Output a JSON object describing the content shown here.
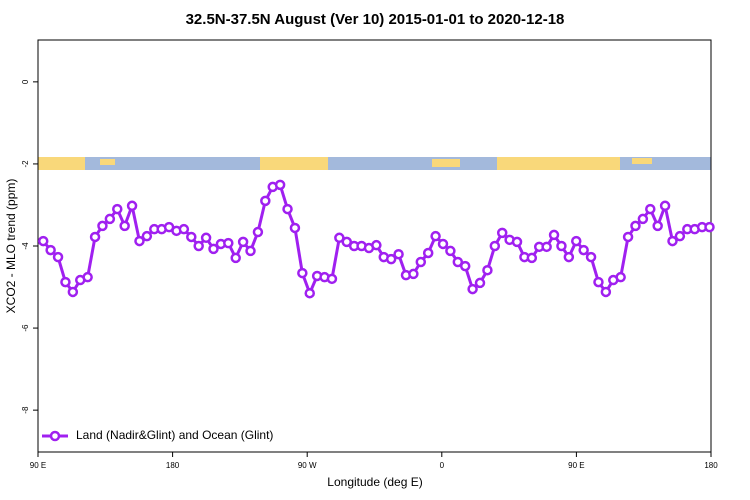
{
  "chart_data": {
    "type": "line",
    "title": "32.5N-37.5N August (Ver 10)   2015-01-01 to 2020-12-18",
    "x_label": "Longitude (deg E)",
    "y_label": "XCO2 - MLO trend (ppm)",
    "xlim": [
      90,
      540
    ],
    "ylim": [
      -9.02,
      1.02
    ],
    "xticks": [
      {
        "value": 90,
        "label": "90 E"
      },
      180,
      {
        "value": 270,
        "label": "90 W"
      },
      {
        "value": 360,
        "label": "0"
      },
      {
        "value": 450,
        "label": "90 E"
      },
      {
        "value": 540,
        "label": "180"
      }
    ],
    "yticks": [
      0,
      -2,
      -4,
      -6,
      -8
    ],
    "legend": "bottom-left",
    "x": [
      93.5,
      98.45,
      103.4,
      108.35,
      113.3,
      118.25,
      123.2,
      128.15,
      133.1,
      138.05,
      143,
      147.95,
      152.9,
      157.85,
      162.8,
      167.75,
      172.7,
      177.65,
      182.6,
      187.55,
      192.5,
      197.45,
      202.4,
      207.35,
      212.3,
      217.25,
      222.2,
      227.15,
      232.1,
      237.05,
      242,
      246.95,
      251.9,
      256.85,
      261.8,
      266.75,
      271.7,
      276.65,
      281.6,
      286.55,
      291.5,
      296.45,
      301.4,
      306.35,
      311.3,
      316.25,
      321.2,
      326.15,
      331.1,
      336.05,
      341,
      345.95,
      350.9,
      355.85,
      360.8,
      365.75,
      370.7,
      375.65,
      380.6,
      385.55,
      390.5,
      395.45,
      400.4,
      405.35,
      410.3,
      415.25,
      420.2,
      425.15,
      430.1,
      435.05,
      440,
      444.95,
      449.9,
      454.85,
      459.8,
      464.75,
      469.7,
      474.65,
      479.6,
      484.55,
      489.5,
      494.45,
      499.4,
      504.35,
      509.3,
      514.25,
      519.2,
      524.15,
      529.1,
      534.05,
      539
    ],
    "series": [
      {
        "name": "Land (Nadir&Glint) and Ocean (Glint)",
        "color": "#a020f0",
        "values": [
          -3.88,
          -4.1,
          -4.27,
          -4.88,
          -5.12,
          -4.83,
          -4.76,
          -3.78,
          -3.51,
          -3.34,
          -3.1,
          -3.51,
          -3.02,
          -3.88,
          -3.76,
          -3.59,
          -3.59,
          -3.54,
          -3.63,
          -3.59,
          -3.78,
          -4.0,
          -3.8,
          -4.07,
          -3.95,
          -3.93,
          -4.29,
          -3.9,
          -4.12,
          -3.66,
          -2.9,
          -2.56,
          -2.51,
          -3.1,
          -3.56,
          -4.66,
          -5.15,
          -4.73,
          -4.76,
          -4.8,
          -3.8,
          -3.9,
          -4.0,
          -4.0,
          -4.05,
          -3.98,
          -4.27,
          -4.32,
          -4.2,
          -4.71,
          -4.68,
          -4.39,
          -4.17,
          -3.76,
          -3.95,
          -4.12,
          -4.39,
          -4.49,
          -5.05,
          -4.9,
          -4.59,
          -4.0,
          -3.68,
          -3.85,
          -3.9,
          -4.27,
          -4.29,
          -4.02,
          -4.02,
          -3.73,
          -4.0,
          -4.27,
          -3.88,
          -4.1,
          -4.27,
          -4.88,
          -5.12,
          -4.83,
          -4.76,
          -3.78,
          -3.51,
          -3.34,
          -3.1,
          -3.51,
          -3.02,
          -3.88,
          -3.76,
          -3.59,
          -3.59,
          -3.54,
          -3.54
        ]
      }
    ]
  }
}
